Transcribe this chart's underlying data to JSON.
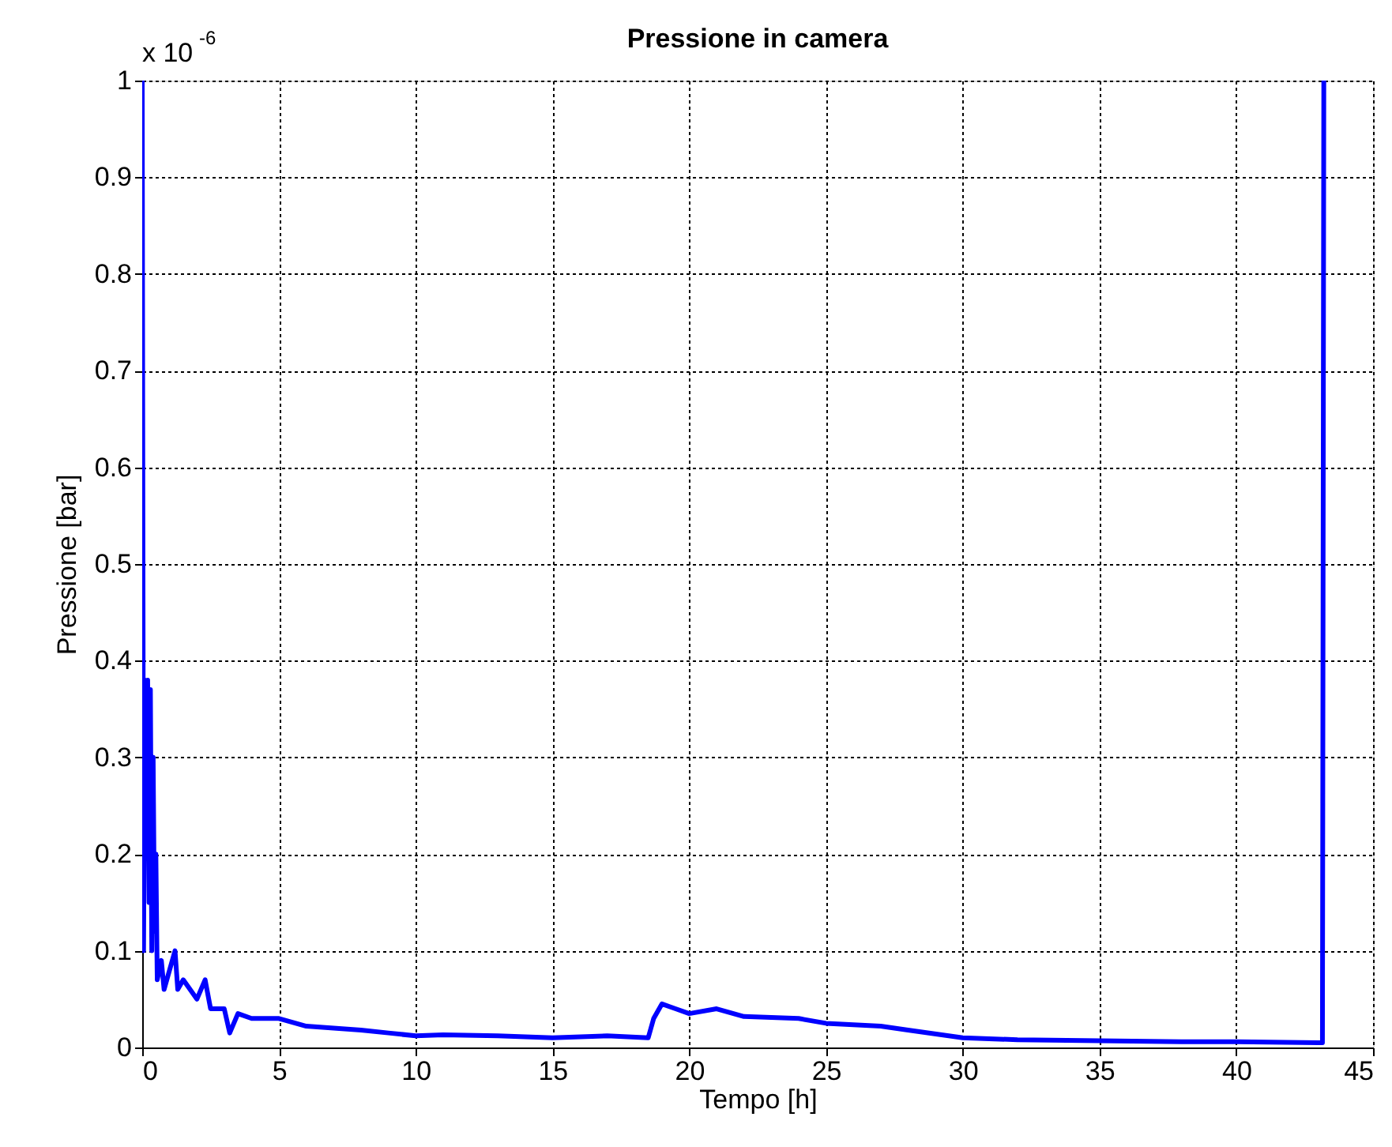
{
  "chart_data": {
    "type": "line",
    "title": "Pressione in camera",
    "xlabel": "Tempo [h]",
    "ylabel": "Pressione [bar]",
    "annotations": [
      "x 10$^{-6}$"
    ],
    "xlim": [
      0,
      45
    ],
    "xticks": [
      0,
      5,
      10,
      15,
      20,
      25,
      30,
      35,
      40,
      45
    ],
    "ylim": [
      0,
      1
    ],
    "yticks": [
      0,
      0.1,
      0.2,
      0.3,
      0.4,
      0.5,
      0.6,
      0.7,
      0.8,
      0.9,
      1
    ],
    "grid": true,
    "line_style": "solid",
    "marker": "none",
    "series": [
      {
        "color": "#0000ff",
        "x": [
          0,
          0.05,
          0.1,
          0.15,
          0.2,
          0.25,
          0.3,
          0.35,
          0.4,
          0.45,
          0.5,
          0.55,
          0.7,
          0.8,
          1.0,
          1.2,
          1.3,
          1.5,
          2,
          2.3,
          2.5,
          3,
          3.2,
          3.5,
          4,
          5,
          6,
          7,
          8,
          9,
          10,
          11,
          13,
          15,
          17,
          18.5,
          18.7,
          19,
          19.5,
          20,
          21,
          22,
          24,
          25,
          27,
          28,
          30,
          32,
          35,
          38,
          40,
          43,
          43.15,
          43.2
        ],
        "values": [
          1,
          0.1,
          0.38,
          0.2,
          0.38,
          0.15,
          0.37,
          0.1,
          0.3,
          0.12,
          0.2,
          0.07,
          0.09,
          0.06,
          0.08,
          0.1,
          0.06,
          0.07,
          0.05,
          0.07,
          0.04,
          0.04,
          0.015,
          0.035,
          0.03,
          0.03,
          0.022,
          0.02,
          0.018,
          0.015,
          0.012,
          0.013,
          0.012,
          0.01,
          0.012,
          0.01,
          0.03,
          0.045,
          0.04,
          0.035,
          0.04,
          0.032,
          0.03,
          0.025,
          0.022,
          0.018,
          0.01,
          0.008,
          0.007,
          0.006,
          0.006,
          0.005,
          0.005,
          1
        ]
      }
    ]
  }
}
